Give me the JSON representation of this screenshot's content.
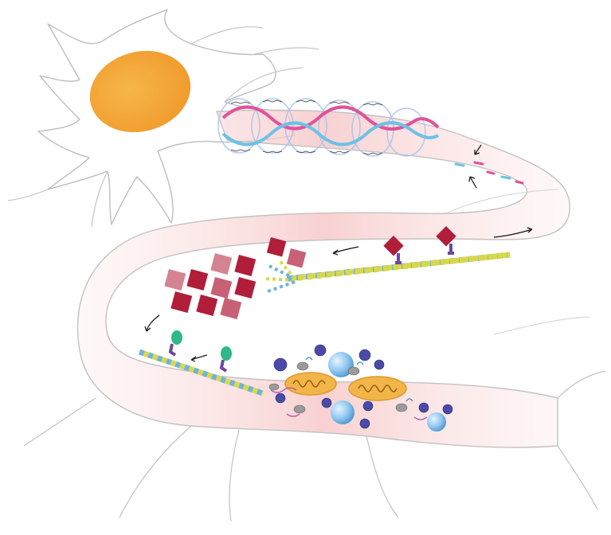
{
  "figure": {
    "kind": "neuron-axon-illustration",
    "background": "#ffffff",
    "colors": {
      "nucleus": "#f5a83a",
      "membrane": "#c9c9c9",
      "axon_tint": "#f9d3d3",
      "mt_blue": "#6fb3dd",
      "mt_yellow": "#d9d84a",
      "helix_pink": "#e0529a",
      "helix_blue": "#6cc2e6",
      "aggregate_red": "#b01e3a",
      "motor_purple": "#6a4aa0",
      "mito_orange": "#f2b548",
      "vesicle_blue": "#8ec6ee"
    },
    "icons": [
      "nucleus-icon",
      "helix-icon",
      "microtubule-icon",
      "aggregate-icon",
      "motor-protein-icon",
      "mitochondrion-icon",
      "vesicle-icon",
      "ribosome-icon",
      "arrow-icon"
    ]
  }
}
